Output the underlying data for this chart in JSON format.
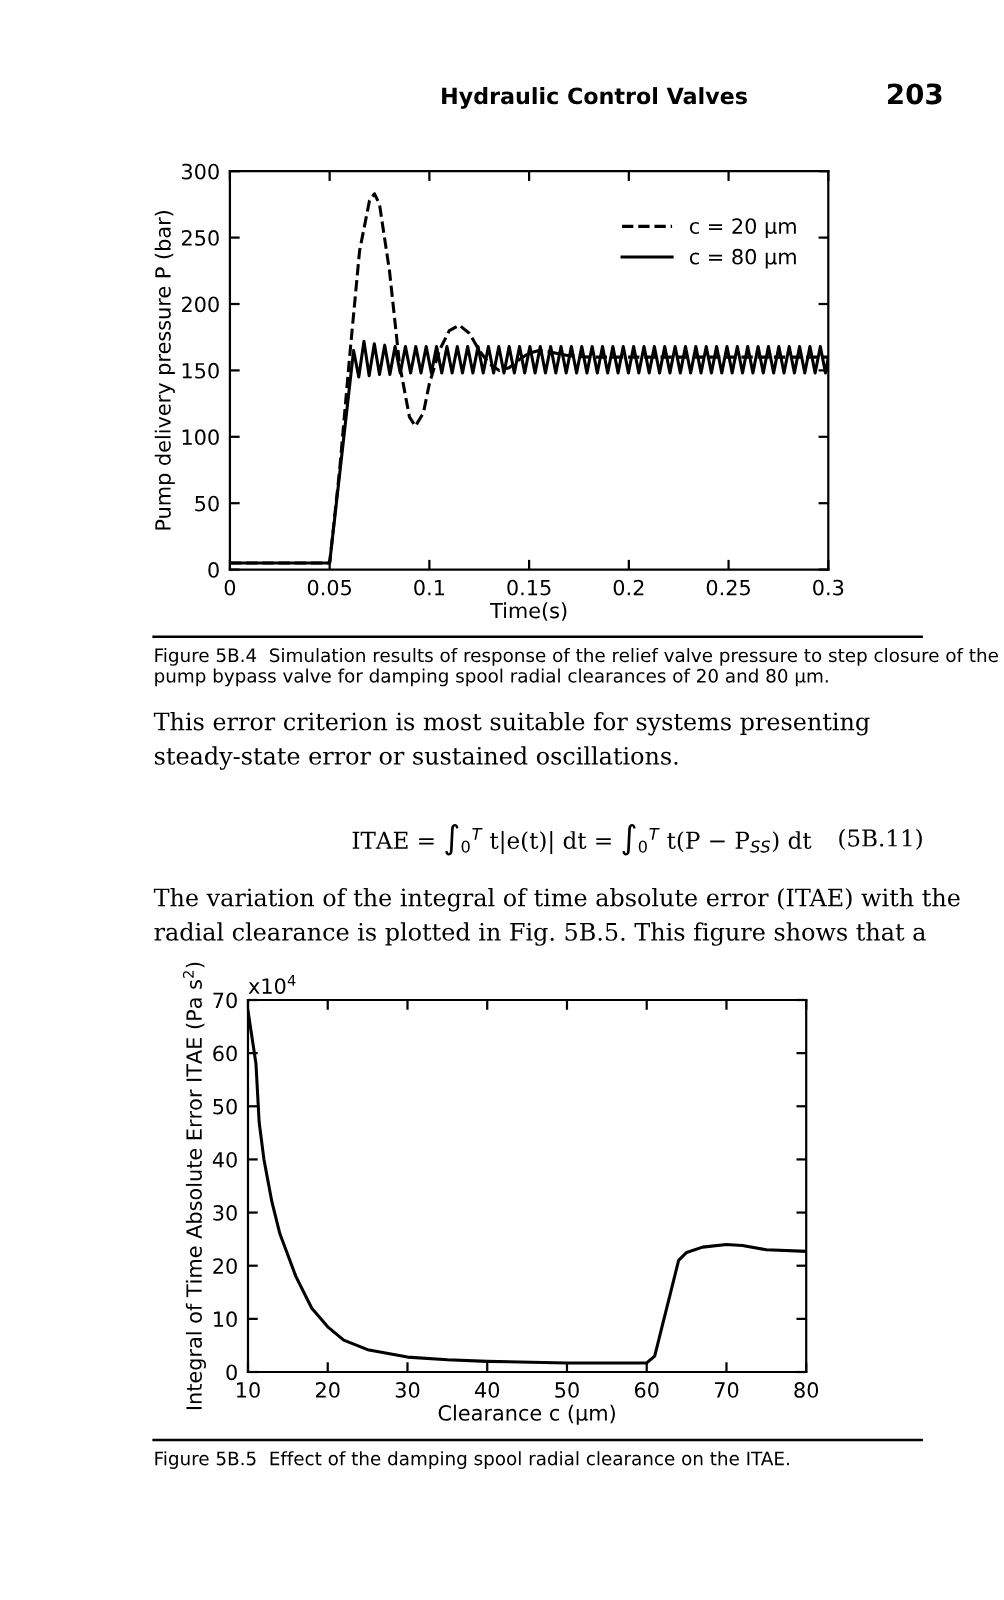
{
  "chart_data": [
    {
      "type": "line",
      "xlabel": "Time(s)",
      "ylabel": "Pump delivery pressure P (bar)",
      "xlim": [
        0,
        0.3
      ],
      "ylim": [
        0,
        300
      ],
      "xticks": [
        0,
        0.05,
        0.1,
        0.15,
        0.2,
        0.25,
        0.3
      ],
      "yticks": [
        0,
        50,
        100,
        150,
        200,
        250,
        300
      ],
      "grid": false,
      "legend": "top right",
      "marker": "none",
      "series": [
        {
          "name": "c = 20 µm",
          "color": "#000000",
          "line_style": "dashed",
          "x": [
            0,
            0.05,
            0.055,
            0.06,
            0.065,
            0.07,
            0.0725,
            0.075,
            0.08,
            0.085,
            0.09,
            0.093,
            0.097,
            0.1,
            0.105,
            0.11,
            0.115,
            0.12,
            0.125,
            0.13,
            0.135,
            0.14,
            0.145,
            0.15,
            0.155,
            0.16,
            0.17,
            0.18,
            0.2,
            0.25,
            0.3
          ],
          "values": [
            5,
            5,
            75,
            160,
            240,
            278,
            283,
            275,
            225,
            155,
            115,
            108,
            118,
            140,
            165,
            180,
            184,
            178,
            165,
            155,
            150,
            152,
            158,
            163,
            165,
            164,
            161,
            160,
            160,
            160,
            160
          ]
        },
        {
          "name": "c = 80 µm",
          "color": "#000000",
          "line_style": "solid",
          "x": [
            0,
            0.05,
            0.062,
            0.0646,
            0.0672,
            0.0698,
            0.0724,
            0.075,
            0.0776,
            0.0802,
            0.0828,
            0.0854,
            0.088,
            0.0906,
            0.0932,
            0.0958,
            0.0984,
            0.101,
            0.1036,
            0.1062,
            0.1088,
            0.1114,
            0.114,
            0.1166,
            0.1192,
            0.1218,
            0.1244,
            0.127,
            0.1296,
            0.1322,
            0.1348,
            0.1374,
            0.14,
            0.1426,
            0.1452,
            0.1478,
            0.1504,
            0.153,
            0.1556,
            0.1582,
            0.1608,
            0.1634,
            0.166,
            0.1686,
            0.1712,
            0.1738,
            0.1764,
            0.179,
            0.1816,
            0.1842,
            0.1868,
            0.1894,
            0.192,
            0.1946,
            0.1972,
            0.1998,
            0.2024,
            0.205,
            0.2076,
            0.2102,
            0.2128,
            0.2154,
            0.218,
            0.2206,
            0.2232,
            0.2258,
            0.2284,
            0.231,
            0.2336,
            0.2362,
            0.2388,
            0.2414,
            0.244,
            0.2466,
            0.2492,
            0.2518,
            0.2544,
            0.257,
            0.2596,
            0.2622,
            0.2648,
            0.2674,
            0.27,
            0.2726,
            0.2752,
            0.2778,
            0.2804,
            0.283,
            0.2856,
            0.2882,
            0.2908,
            0.2934,
            0.296,
            0.2986,
            0.3
          ],
          "values": [
            5,
            5,
            165,
            145,
            172,
            146,
            170,
            147,
            169,
            147,
            168,
            148,
            168,
            148,
            168,
            148,
            168,
            148,
            168,
            148,
            168,
            148,
            168,
            148,
            168,
            148,
            168,
            148,
            168,
            148,
            168,
            148,
            168,
            148,
            168,
            148,
            168,
            148,
            168,
            148,
            168,
            148,
            168,
            148,
            168,
            148,
            168,
            148,
            168,
            148,
            168,
            148,
            168,
            148,
            168,
            148,
            168,
            148,
            168,
            148,
            168,
            148,
            168,
            148,
            168,
            148,
            168,
            148,
            168,
            148,
            168,
            148,
            168,
            148,
            168,
            148,
            168,
            148,
            168,
            148,
            168,
            148,
            168,
            148,
            168,
            148,
            168,
            148,
            168,
            148,
            168,
            148,
            168,
            148,
            160
          ]
        }
      ],
      "annotations": [
        "Hydraulic Control Valves",
        "203",
        "Figure 5B.4  Simulation results of response of the relief valve pressure to step closure of the pump bypass valve for damping spool radial clearances of 20 and 80 µm.",
        "This error criterion is most suitable for systems presenting steady-state error or sustained oscillations.",
        "ITAE = ∫$_{0}$$^{T}$ t|e(t)| dt = ∫$_{0}$$^{T}$ t(P − P$_{SS}$) dt",
        "(5B.11)",
        "The variation of the integral of time absolute error (ITAE) with the radial clearance is plotted in Fig. 5B.5. This figure shows that a"
      ]
    },
    {
      "type": "line",
      "xlabel": "Clearance c (µm)",
      "ylabel": "Integral of Time Absolute Error ITAE (Pa s$^{2}$)",
      "xlim": [
        10,
        80
      ],
      "ylim": [
        0,
        70
      ],
      "xticks": [
        10,
        20,
        30,
        40,
        50,
        60,
        70,
        80
      ],
      "yticks": [
        0,
        10,
        20,
        30,
        40,
        50,
        60,
        70
      ],
      "grid": false,
      "legend": false,
      "marker": "none",
      "series": [
        {
          "color": "#000000",
          "line_style": "solid",
          "x": [
            10,
            11,
            11.4,
            12,
            13,
            14,
            16,
            18,
            20,
            22,
            25,
            30,
            35,
            40,
            50,
            60,
            61,
            62,
            63,
            64,
            65,
            67,
            70,
            72,
            75,
            80
          ],
          "values": [
            68,
            58,
            47,
            40,
            32,
            26,
            18,
            12,
            8.5,
            6,
            4.2,
            2.8,
            2.3,
            2,
            1.7,
            1.7,
            3,
            9,
            15,
            21,
            22.5,
            23.5,
            24,
            23.8,
            23,
            22.7
          ]
        }
      ],
      "annotations": [
        "x10$^{4}$",
        "Figure 5B.5  Effect of the damping spool radial clearance on the ITAE."
      ]
    }
  ]
}
